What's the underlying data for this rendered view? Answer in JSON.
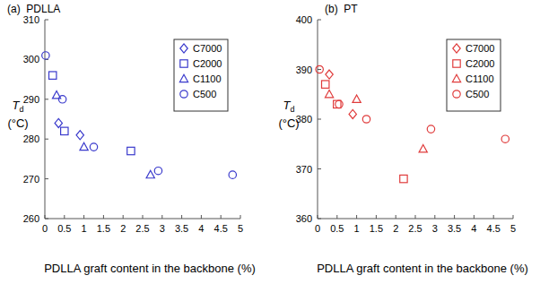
{
  "chart_data": [
    {
      "type": "scatter",
      "title": "(a)  PDLLA",
      "x_label": "PDLLA graft content in the backbone (%)",
      "y_label": "Td (°C)",
      "xlim": [
        0,
        5
      ],
      "ylim": [
        260,
        310
      ],
      "xticks": [
        0,
        0.5,
        1,
        1.5,
        2,
        2.5,
        3,
        3.5,
        4,
        4.5,
        5
      ],
      "yticks": [
        260,
        270,
        280,
        290,
        300,
        310
      ],
      "legend": "upper right",
      "series": [
        {
          "name": "C7000",
          "color": "#3a3acc",
          "marker": "diamond",
          "x": [
            0.35,
            0.9
          ],
          "values": [
            284,
            281
          ]
        },
        {
          "name": "C2000",
          "color": "#3a3acc",
          "marker": "square",
          "x": [
            0.2,
            0.5,
            2.2
          ],
          "values": [
            296,
            282,
            277
          ]
        },
        {
          "name": "C1100",
          "color": "#3a3acc",
          "marker": "triangle",
          "x": [
            0.3,
            1.0,
            2.7
          ],
          "values": [
            291,
            278,
            271
          ]
        },
        {
          "name": "C500",
          "color": "#3a3acc",
          "marker": "circle",
          "x": [
            0.02,
            0.45,
            1.25,
            2.9,
            4.8
          ],
          "values": [
            301,
            290,
            278,
            272,
            271
          ]
        }
      ]
    },
    {
      "type": "scatter",
      "title": "(b)  PT",
      "x_label": "PDLLA graft content in the backbone (%)",
      "y_label": "Td (°C)",
      "xlim": [
        0,
        5
      ],
      "ylim": [
        360,
        400
      ],
      "xticks": [
        0,
        0.5,
        1,
        1.5,
        2,
        2.5,
        3,
        3.5,
        4,
        4.5,
        5
      ],
      "yticks": [
        360,
        370,
        380,
        390,
        400
      ],
      "legend": "upper right",
      "series": [
        {
          "name": "C7000",
          "color": "#e03c3c",
          "marker": "diamond",
          "x": [
            0.3,
            0.9
          ],
          "values": [
            389,
            381
          ]
        },
        {
          "name": "C2000",
          "color": "#e03c3c",
          "marker": "square",
          "x": [
            0.2,
            0.5,
            2.2
          ],
          "values": [
            387,
            383,
            368
          ]
        },
        {
          "name": "C1100",
          "color": "#e03c3c",
          "marker": "triangle",
          "x": [
            0.3,
            1.0,
            2.7
          ],
          "values": [
            385,
            384,
            374
          ]
        },
        {
          "name": "C500",
          "color": "#e03c3c",
          "marker": "circle",
          "x": [
            0.05,
            0.55,
            1.25,
            2.9,
            4.8
          ],
          "values": [
            390,
            383,
            380,
            378,
            376
          ]
        }
      ]
    }
  ]
}
